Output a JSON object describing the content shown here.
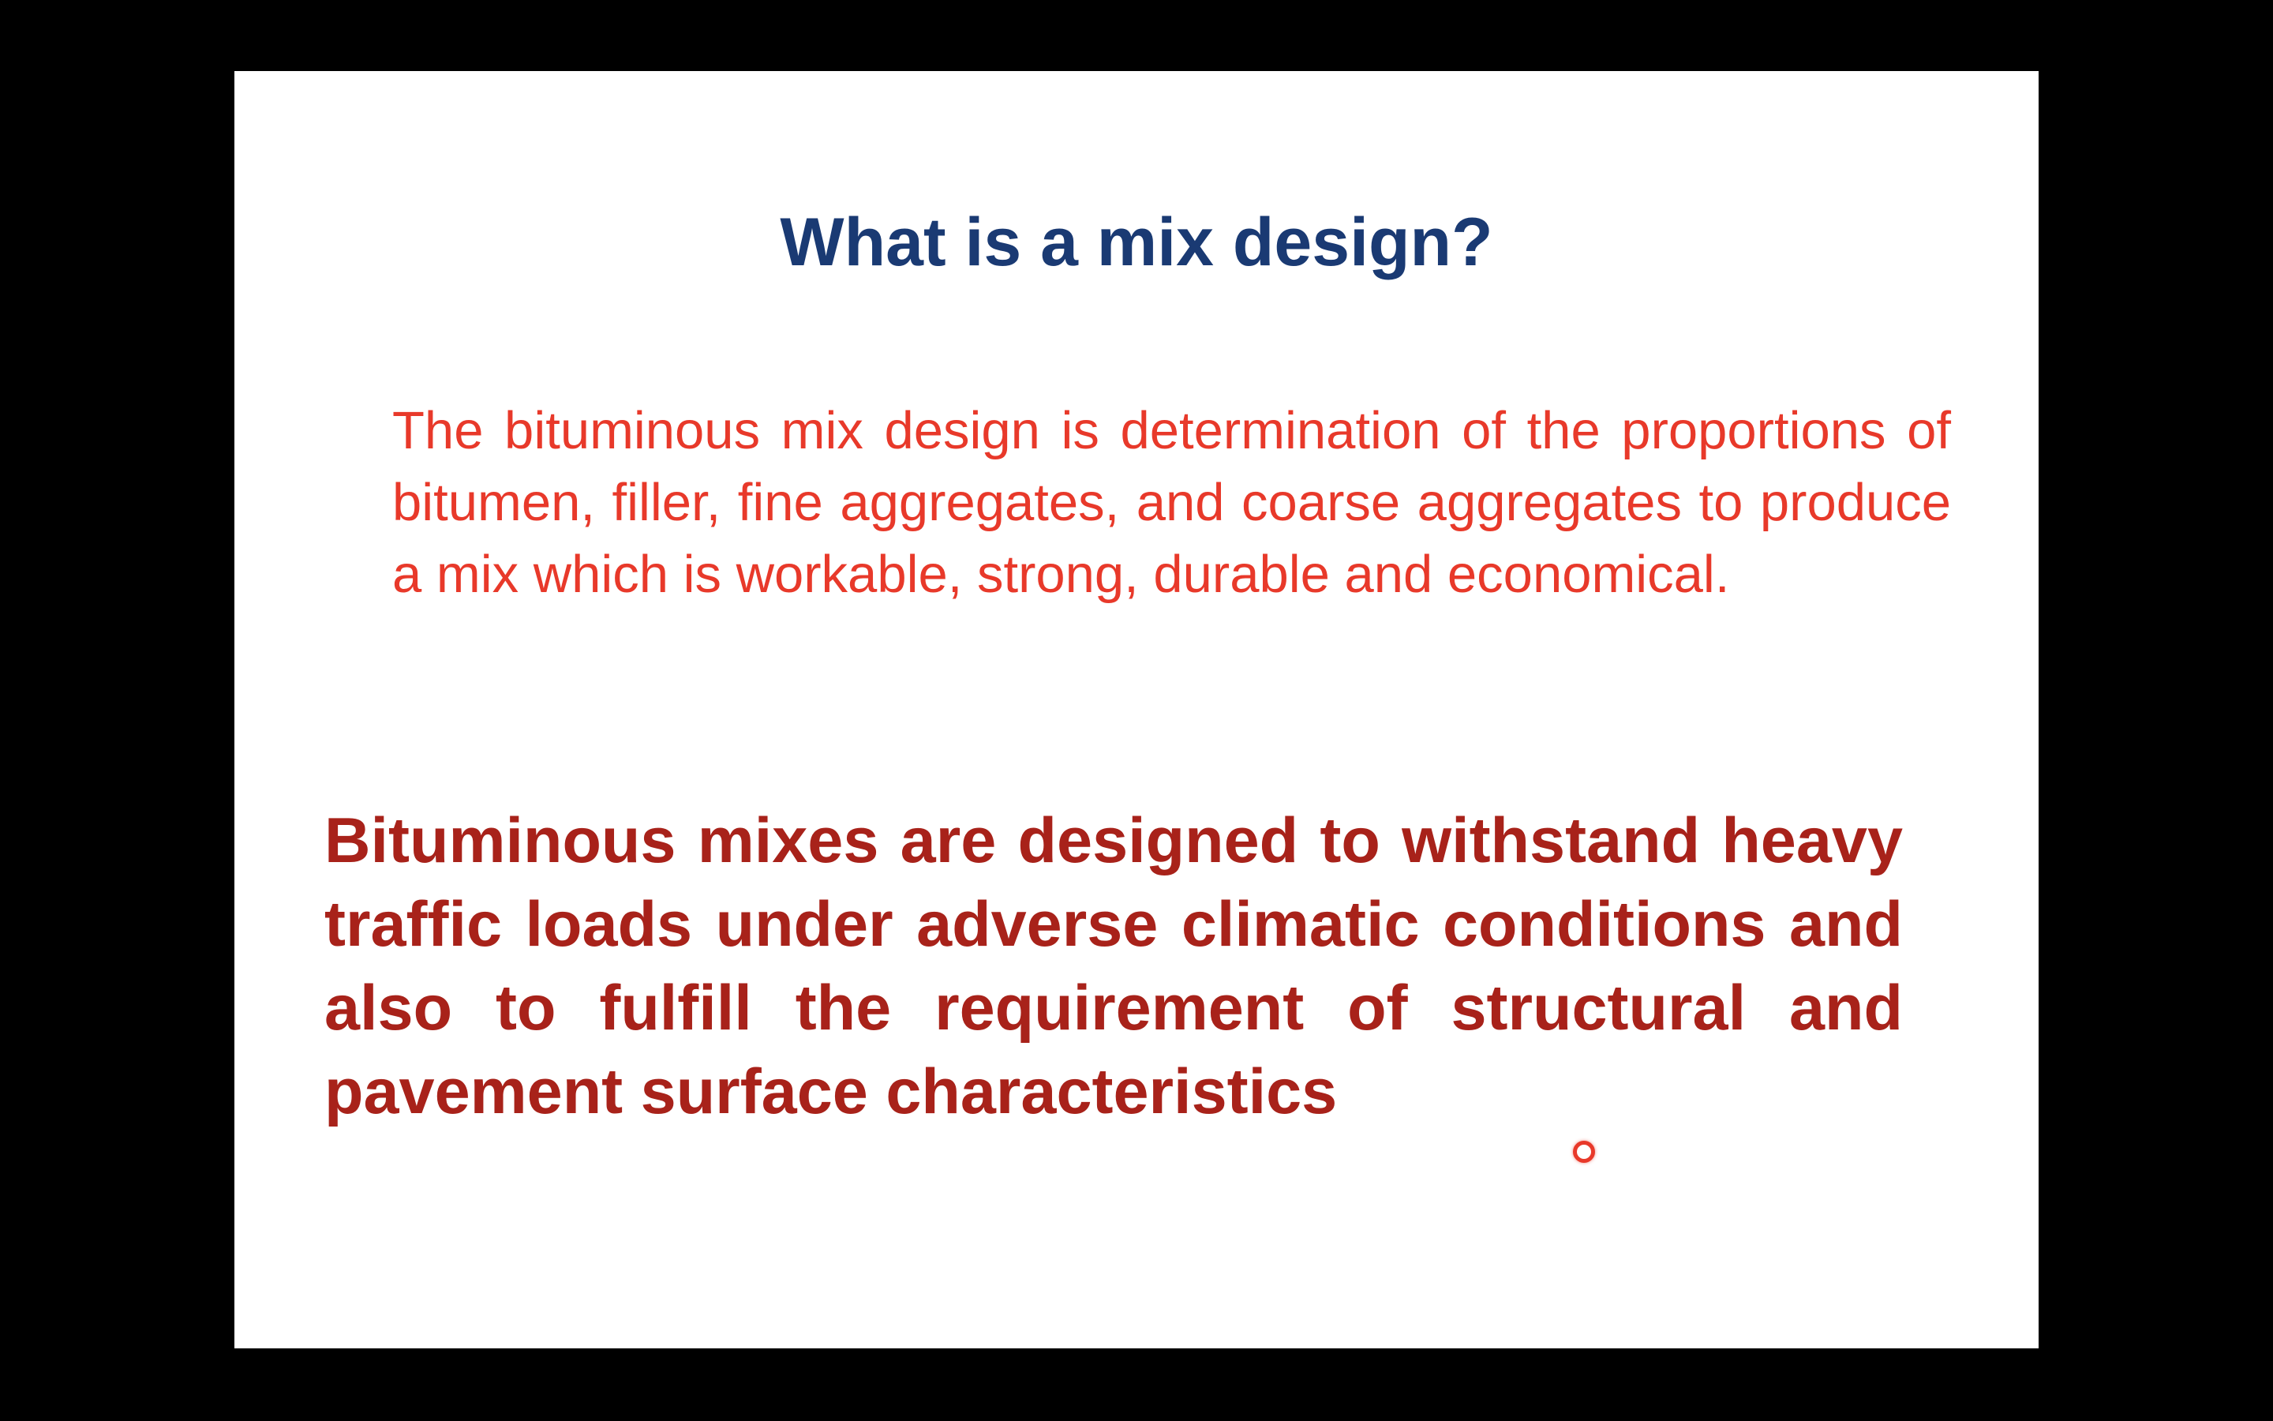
{
  "slide": {
    "title": "What is a mix design?",
    "definition": "The bituminous mix design is determination of the proportions of bitumen, filler, fine aggregates, and coarse aggregates to produce a mix which is workable, strong, durable and economical.",
    "statement": "Bituminous mixes are designed to withstand heavy traffic loads under adverse climatic conditions and also to fulfill the requirement of structural and pavement surface characteristics"
  },
  "colors": {
    "background": "#000000",
    "slide": "#ffffff",
    "title": "#1a3a73",
    "definition": "#e8392a",
    "statement": "#a8221a",
    "pointer": "#e8392a"
  },
  "icons": {
    "pointer": "laser-pointer-icon"
  }
}
